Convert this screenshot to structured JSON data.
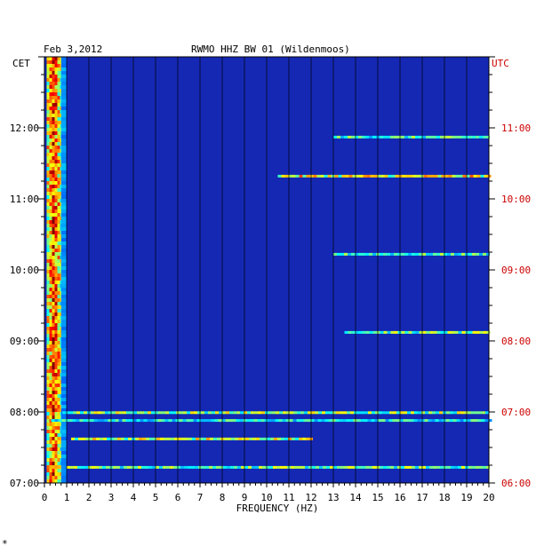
{
  "chart_data": {
    "type": "heatmap",
    "date": "Feb 3,2012",
    "title": "RWMO HHZ BW 01 (Wildenmoos)",
    "left_tz": "CET",
    "right_tz": "UTC",
    "xlabel": "FREQUENCY (HZ)",
    "xlim": [
      0,
      20
    ],
    "x_ticks": [
      "0",
      "1",
      "2",
      "3",
      "4",
      "5",
      "6",
      "7",
      "8",
      "9",
      "10",
      "11",
      "12",
      "13",
      "14",
      "15",
      "16",
      "17",
      "18",
      "19",
      "20"
    ],
    "y_time_range_cet": [
      "07:00",
      "13:00"
    ],
    "cet_ticks": [
      {
        "t": 7,
        "label": "07:00"
      },
      {
        "t": 8,
        "label": "08:00"
      },
      {
        "t": 9,
        "label": "09:00"
      },
      {
        "t": 10,
        "label": "10:00"
      },
      {
        "t": 11,
        "label": "11:00"
      },
      {
        "t": 12,
        "label": "12:00"
      }
    ],
    "utc_ticks": [
      {
        "t": 7,
        "label": "06:00"
      },
      {
        "t": 8,
        "label": "07:00"
      },
      {
        "t": 9,
        "label": "08:00"
      },
      {
        "t": 10,
        "label": "09:00"
      },
      {
        "t": 11,
        "label": "10:00"
      },
      {
        "t": 12,
        "label": "11:00"
      }
    ],
    "background_color": "#1428b4",
    "low_freq_band": {
      "from_hz": 0.1,
      "to_hz": 0.75,
      "note": "persistent high energy"
    },
    "noise_lines": [
      {
        "t": 7.22,
        "from_hz": 1.0,
        "to_hz": 20,
        "intensity": 0.55
      },
      {
        "t": 7.62,
        "from_hz": 1.2,
        "to_hz": 12,
        "intensity": 0.65
      },
      {
        "t": 7.88,
        "from_hz": 0.3,
        "to_hz": 20,
        "intensity": 0.45
      },
      {
        "t": 7.99,
        "from_hz": 0.8,
        "to_hz": 20,
        "intensity": 0.6
      },
      {
        "t": 9.12,
        "from_hz": 13.5,
        "to_hz": 20,
        "intensity": 0.55
      },
      {
        "t": 10.22,
        "from_hz": 13.0,
        "to_hz": 20,
        "intensity": 0.5
      },
      {
        "t": 11.32,
        "from_hz": 10.5,
        "to_hz": 20,
        "intensity": 0.7
      },
      {
        "t": 11.87,
        "from_hz": 13.0,
        "to_hz": 20,
        "intensity": 0.5
      }
    ]
  },
  "footer_mark": "*"
}
